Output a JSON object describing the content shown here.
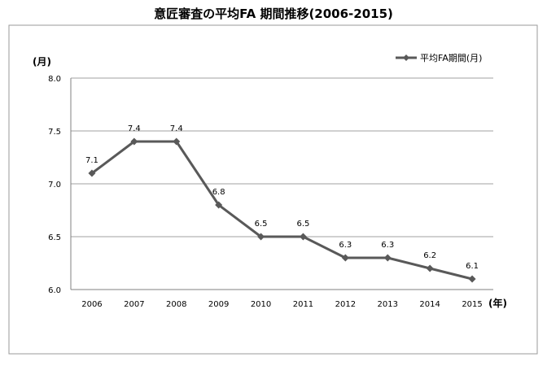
{
  "chart_data": {
    "type": "line",
    "title": "意匠審査の平均FA 期間推移(2006-2015)",
    "ylabel": "(月)",
    "xlabel": "(年)",
    "ylim": [
      6.0,
      8.0
    ],
    "yticks": [
      "6.0",
      "6.5",
      "7.0",
      "7.5",
      "8.0"
    ],
    "grid": true,
    "legend_position": "top-right",
    "series_color": "#595959",
    "categories": [
      "2006",
      "2007",
      "2008",
      "2009",
      "2010",
      "2011",
      "2012",
      "2013",
      "2014",
      "2015"
    ],
    "series": [
      {
        "name": "平均FA期間(月)",
        "values": [
          7.1,
          7.4,
          7.4,
          6.8,
          6.5,
          6.5,
          6.3,
          6.3,
          6.2,
          6.1
        ],
        "labels": [
          "7.1",
          "7.4",
          "7.4",
          "6.8",
          "6.5",
          "6.5",
          "6.3",
          "6.3",
          "6.2",
          "6.1"
        ]
      }
    ]
  }
}
